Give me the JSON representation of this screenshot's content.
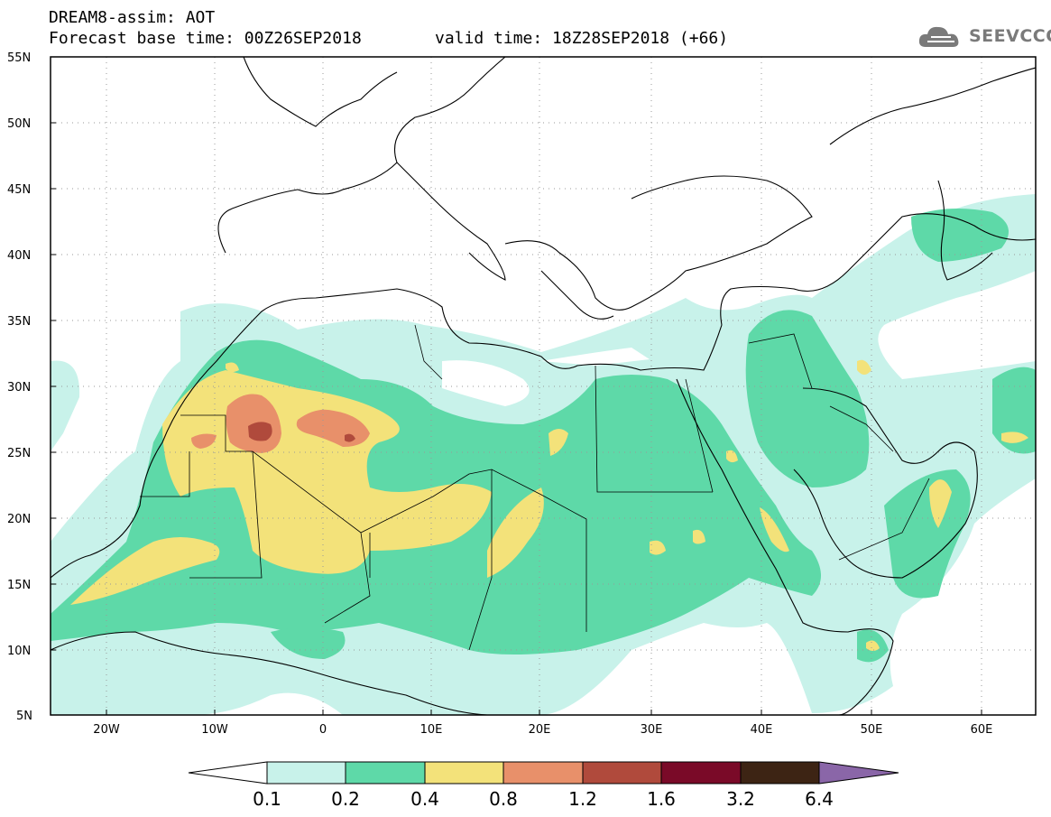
{
  "header": {
    "title_line1": "DREAM8-assim: AOT",
    "title_line2": "Forecast base time: 00Z26SEP2018",
    "valid_time": "valid time: 18Z28SEP2018 (+66)",
    "logo_text": "SEEVCCC",
    "logo_icon": "cloud-icon"
  },
  "map": {
    "lat_labels": [
      "55N",
      "50N",
      "45N",
      "40N",
      "35N",
      "30N",
      "25N",
      "20N",
      "15N",
      "10N",
      "5N"
    ],
    "lon_labels": [
      "20W",
      "10W",
      "0",
      "10E",
      "20E",
      "30E",
      "40E",
      "50E",
      "60E"
    ],
    "lat_range": [
      5,
      55
    ],
    "lon_range": [
      -25,
      65
    ],
    "grid": "dotted",
    "coast_color": "#000000"
  },
  "colorbar": {
    "thresholds": [
      "0.1",
      "0.2",
      "0.4",
      "0.8",
      "1.2",
      "1.6",
      "3.2",
      "6.4"
    ],
    "colors": [
      "#c8f2ea",
      "#5ed9a8",
      "#f3e27a",
      "#e8906a",
      "#b04a3c",
      "#7a0a28",
      "#3d2414",
      "#8a66a8"
    ],
    "under_color": "#ffffff",
    "over_color": "#8a66a8"
  }
}
